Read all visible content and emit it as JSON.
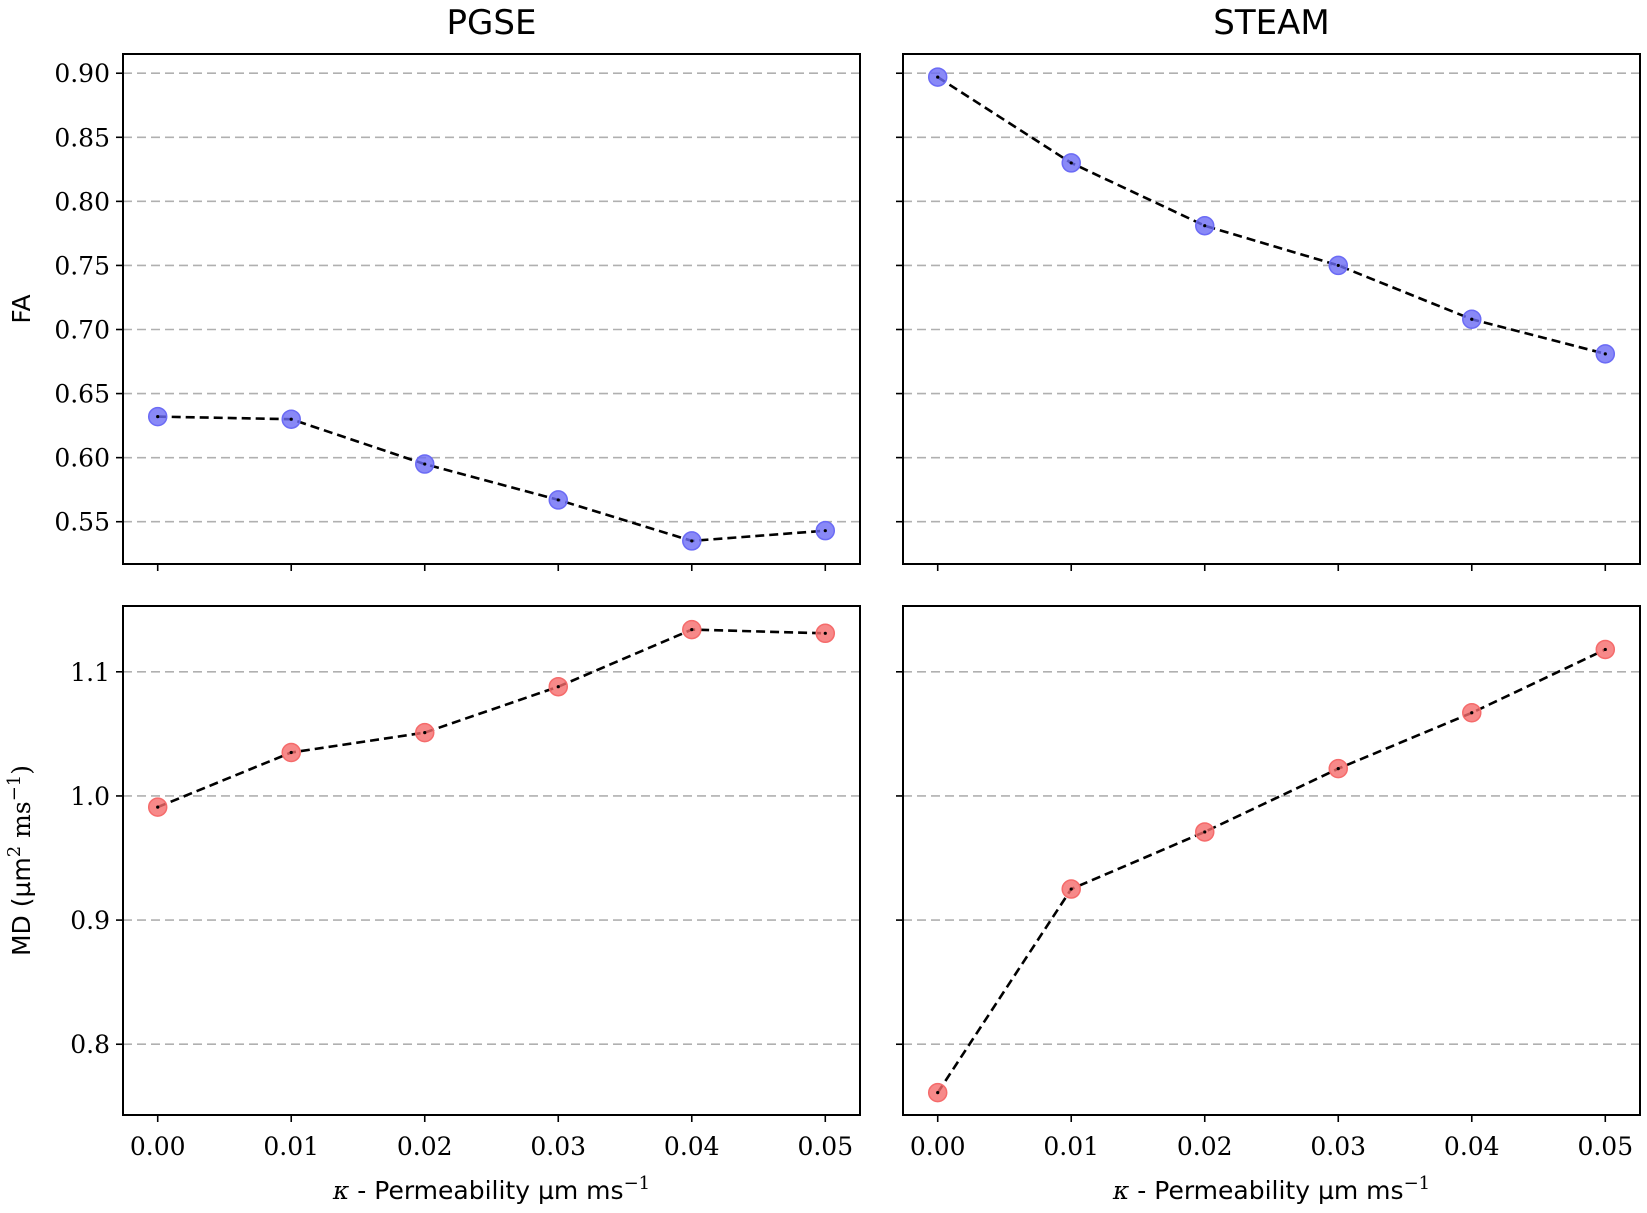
{
  "chart_data": [
    {
      "type": "line",
      "panel": "top-left",
      "title": "PGSE",
      "ylabel": "FA",
      "xlabel": "",
      "x": [
        0.0,
        0.01,
        0.02,
        0.03,
        0.04,
        0.05
      ],
      "y": [
        0.632,
        0.63,
        0.595,
        0.567,
        0.535,
        0.543
      ],
      "xlim": [
        -0.0026,
        0.0526
      ],
      "ylim": [
        0.517,
        0.915
      ],
      "yticks": [
        0.55,
        0.6,
        0.65,
        0.7,
        0.75,
        0.8,
        0.85,
        0.9
      ],
      "ytick_labels": [
        "0.55",
        "0.60",
        "0.65",
        "0.70",
        "0.75",
        "0.80",
        "0.85",
        "0.90"
      ],
      "xticks": [
        0.0,
        0.01,
        0.02,
        0.03,
        0.04,
        0.05
      ],
      "xtick_labels": [],
      "marker_color": "#6b6bf5",
      "grid": "horizontal dashed"
    },
    {
      "type": "line",
      "panel": "top-right",
      "title": "STEAM",
      "ylabel": "",
      "xlabel": "",
      "x": [
        0.0,
        0.01,
        0.02,
        0.03,
        0.04,
        0.05
      ],
      "y": [
        0.897,
        0.83,
        0.781,
        0.75,
        0.708,
        0.681
      ],
      "xlim": [
        -0.0026,
        0.0526
      ],
      "ylim": [
        0.517,
        0.915
      ],
      "yticks": [
        0.55,
        0.6,
        0.65,
        0.7,
        0.75,
        0.8,
        0.85,
        0.9
      ],
      "ytick_labels": [],
      "xticks": [
        0.0,
        0.01,
        0.02,
        0.03,
        0.04,
        0.05
      ],
      "xtick_labels": [],
      "marker_color": "#6b6bf5",
      "grid": "horizontal dashed"
    },
    {
      "type": "line",
      "panel": "bottom-left",
      "title": "",
      "ylabel": "MD (µm",
      "ylabel_sup1": "2",
      "ylabel_mid": " ms",
      "ylabel_sup2": "−1",
      "ylabel_end": ")",
      "xlabel": "- Permeability µm ms",
      "xlabel_kappa": "κ",
      "xlabel_sup": "−1",
      "x": [
        0.0,
        0.01,
        0.02,
        0.03,
        0.04,
        0.05
      ],
      "y": [
        0.991,
        1.035,
        1.051,
        1.088,
        1.134,
        1.131
      ],
      "xlim": [
        -0.0026,
        0.0526
      ],
      "ylim": [
        0.743,
        1.153
      ],
      "yticks": [
        0.8,
        0.9,
        1.0,
        1.1
      ],
      "ytick_labels": [
        "0.8",
        "0.9",
        "1.0",
        "1.1"
      ],
      "xticks": [
        0.0,
        0.01,
        0.02,
        0.03,
        0.04,
        0.05
      ],
      "xtick_labels": [
        "0.00",
        "0.01",
        "0.02",
        "0.03",
        "0.04",
        "0.05"
      ],
      "marker_color": "#f56b6b",
      "grid": "horizontal dashed"
    },
    {
      "type": "line",
      "panel": "bottom-right",
      "title": "",
      "ylabel": "",
      "xlabel": "- Permeability µm ms",
      "xlabel_kappa": "κ",
      "xlabel_sup": "−1",
      "x": [
        0.0,
        0.01,
        0.02,
        0.03,
        0.04,
        0.05
      ],
      "y": [
        0.761,
        0.925,
        0.971,
        1.022,
        1.067,
        1.118
      ],
      "xlim": [
        -0.0026,
        0.0526
      ],
      "ylim": [
        0.743,
        1.153
      ],
      "yticks": [
        0.8,
        0.9,
        1.0,
        1.1
      ],
      "ytick_labels": [],
      "xticks": [
        0.0,
        0.01,
        0.02,
        0.03,
        0.04,
        0.05
      ],
      "xtick_labels": [
        "0.00",
        "0.01",
        "0.02",
        "0.03",
        "0.04",
        "0.05"
      ],
      "marker_color": "#f56b6b",
      "grid": "horizontal dashed"
    }
  ]
}
